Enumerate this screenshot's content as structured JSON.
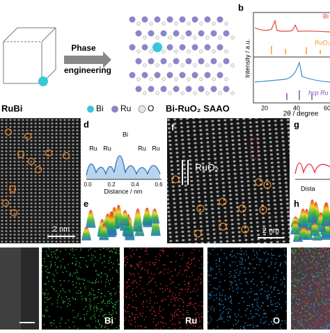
{
  "panel_a": {
    "arrow_top": "Phase",
    "arrow_bottom": "engineering",
    "left_label": "RuBi",
    "right_label": "Bi-RuO₂ SAAO",
    "legend": [
      "Bi",
      "Ru",
      "O"
    ]
  },
  "panel_b": {
    "letter": "b",
    "y_label": "Intensity / a.u.",
    "x_label": "2θ / degree",
    "x_ticks": [
      "20",
      "40",
      "60"
    ],
    "top_label": "Bi",
    "mid_label": "RuO₂",
    "bottom_label": "hcp Ru"
  },
  "panel_c": {
    "scale": "2 nm"
  },
  "panel_d": {
    "letter": "d",
    "peaks": [
      "Ru",
      "Ru",
      "Bi",
      "Ru",
      "Ru"
    ],
    "x_ticks": [
      "0.0",
      "0.2",
      "0.4",
      "0.6"
    ],
    "x_label": "Distance / nm"
  },
  "panel_e": {
    "letter": "e"
  },
  "panel_f": {
    "letter": "f",
    "label": "RuO₂",
    "scale": "2 nm"
  },
  "panel_g": {
    "letter": "g",
    "x_label": "Dista"
  },
  "panel_h": {
    "letter": "h"
  },
  "eds": {
    "labels": [
      "Bi",
      "Ru",
      "O"
    ]
  }
}
